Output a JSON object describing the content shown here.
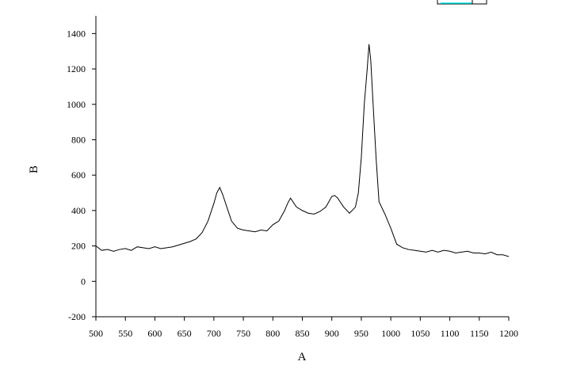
{
  "chart_data": {
    "type": "line",
    "x_label": "A",
    "y_label": "B",
    "x": [
      500,
      510,
      520,
      530,
      540,
      550,
      560,
      570,
      580,
      590,
      600,
      610,
      620,
      630,
      640,
      650,
      660,
      670,
      680,
      690,
      700,
      705,
      710,
      715,
      720,
      730,
      740,
      750,
      760,
      770,
      780,
      790,
      800,
      810,
      820,
      825,
      830,
      840,
      850,
      860,
      870,
      880,
      890,
      900,
      905,
      910,
      920,
      930,
      940,
      945,
      950,
      955,
      960,
      963,
      966,
      970,
      975,
      980,
      990,
      1000,
      1010,
      1020,
      1030,
      1040,
      1050,
      1060,
      1070,
      1080,
      1090,
      1100,
      1110,
      1120,
      1130,
      1140,
      1150,
      1160,
      1170,
      1180,
      1190,
      1200
    ],
    "series": [
      {
        "color": "#000000",
        "values": [
          200,
          175,
          180,
          170,
          180,
          185,
          175,
          195,
          190,
          185,
          195,
          185,
          190,
          195,
          205,
          215,
          225,
          240,
          275,
          340,
          440,
          500,
          530,
          490,
          440,
          340,
          300,
          290,
          285,
          280,
          290,
          285,
          320,
          340,
          400,
          440,
          470,
          420,
          400,
          385,
          380,
          395,
          420,
          480,
          485,
          470,
          420,
          385,
          420,
          500,
          700,
          1000,
          1200,
          1340,
          1250,
          1000,
          700,
          450,
          380,
          300,
          210,
          190,
          180,
          175,
          170,
          165,
          175,
          165,
          175,
          170,
          160,
          165,
          170,
          160,
          160,
          155,
          165,
          150,
          150,
          140
        ]
      }
    ],
    "xlim": [
      500,
      1200
    ],
    "ylim": [
      -200,
      1500
    ],
    "xticks": [
      500,
      550,
      600,
      650,
      700,
      750,
      800,
      850,
      900,
      950,
      1000,
      1050,
      1100,
      1150,
      1200
    ],
    "yticks": [
      -200,
      0,
      200,
      400,
      600,
      800,
      1000,
      1200,
      1400
    ]
  }
}
